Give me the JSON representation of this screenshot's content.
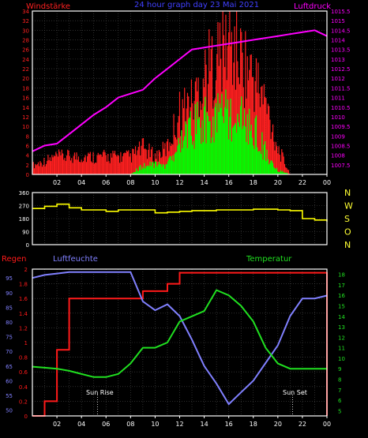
{
  "colors": {
    "background": "#000000",
    "frame": "#ffffff",
    "grid": "#4a4a4a",
    "wind_speed": "#ff2020",
    "wind_gust": "#ff1010",
    "wind_mean": "#00ff00",
    "pressure": "#ff00ff",
    "direction": "#ffff00",
    "rain": "#ff1a1a",
    "humidity": "#8080ff",
    "temperature": "#20e020",
    "title": "#4040ff",
    "direction_labels": "#ffff33"
  },
  "texts": {
    "wind_label": "Windstärke",
    "title": "24 hour graph day  23 Mai 2021",
    "pressure_label": "Luftdruck",
    "rain_label": "Regen",
    "humidity_label": "Luftfeuchte",
    "temperature_label": "Temperatur",
    "sunrise": "Sun Rise",
    "sunset": "Sun Set"
  },
  "chart_data": [
    {
      "type": "bar",
      "x_ticks": [
        "02",
        "04",
        "06",
        "08",
        "10",
        "12",
        "14",
        "16",
        "18",
        "20",
        "22",
        "00"
      ],
      "left_axis": {
        "ylim": [
          0,
          34
        ],
        "ticks": [
          "0",
          "2",
          "4",
          "6",
          "8",
          "10",
          "12",
          "14",
          "16",
          "18",
          "20",
          "22",
          "24",
          "26",
          "28",
          "30",
          "32",
          "34"
        ]
      },
      "right_axis": {
        "ylim": [
          1007,
          1015.5
        ],
        "ticks": [
          "1007.5",
          "1008",
          "1008.5",
          "1009",
          "1009.5",
          "1010",
          "1010.5",
          "1011",
          "1011.5",
          "1012",
          "1012.5",
          "1013",
          "1013.5",
          "1014",
          "1014.5",
          "1015",
          "1015.5"
        ]
      },
      "x": [
        0,
        1,
        2,
        3,
        4,
        5,
        6,
        7,
        8,
        9,
        10,
        11,
        12,
        13,
        14,
        15,
        16,
        17,
        18,
        19,
        20,
        21,
        22,
        23,
        24
      ],
      "series": [
        {
          "name": "Windstärke",
          "values": [
            2,
            3,
            4,
            4,
            4,
            4,
            4,
            4,
            4,
            6,
            4,
            6,
            14,
            16,
            22,
            26,
            30,
            26,
            22,
            16,
            6,
            0,
            0,
            0,
            0
          ]
        },
        {
          "values": [
            0,
            0,
            0,
            0,
            0,
            0,
            0,
            0,
            0,
            2,
            2,
            2,
            6,
            10,
            12,
            12,
            13,
            12,
            10,
            5,
            1,
            0,
            0,
            0,
            0
          ]
        },
        {
          "name": "Luftdruck",
          "values": [
            1008.2,
            1008.5,
            1008.6,
            1009.1,
            1009.6,
            1010.1,
            1010.5,
            1011.0,
            1011.2,
            1011.4,
            1012.0,
            1012.5,
            1013.0,
            1013.5,
            1013.6,
            1013.7,
            1013.8,
            1013.9,
            1014.0,
            1014.1,
            1014.2,
            1014.3,
            1014.4,
            1014.5,
            1014.2
          ]
        }
      ]
    },
    {
      "type": "line",
      "left_axis": {
        "ylim": [
          0,
          360
        ],
        "ticks": [
          "0",
          "90",
          "180",
          "270",
          "360"
        ]
      },
      "right_axis_labels": [
        "N",
        "W",
        "S",
        "O",
        "N"
      ],
      "x": [
        0,
        1,
        2,
        3,
        4,
        5,
        6,
        7,
        8,
        9,
        10,
        11,
        12,
        13,
        14,
        15,
        16,
        17,
        18,
        19,
        20,
        21,
        22,
        23,
        24
      ],
      "series": [
        {
          "values": [
            250,
            265,
            280,
            255,
            240,
            240,
            230,
            240,
            240,
            240,
            220,
            225,
            230,
            235,
            235,
            240,
            240,
            240,
            245,
            245,
            240,
            235,
            180,
            170,
            160
          ]
        }
      ]
    },
    {
      "type": "line",
      "x_ticks": [
        "02",
        "04",
        "06",
        "08",
        "10",
        "12",
        "14",
        "16",
        "18",
        "20",
        "22",
        "00"
      ],
      "rain_axis": {
        "ylim": [
          0,
          2
        ],
        "ticks": [
          "0",
          "0.2",
          "0.4",
          "0.6",
          "0.8",
          "1",
          "1.2",
          "1.4",
          "1.6",
          "1.8",
          "2"
        ]
      },
      "humidity_axis": {
        "ylim": [
          48,
          98
        ],
        "ticks": [
          "50",
          "55",
          "60",
          "65",
          "70",
          "75",
          "80",
          "85",
          "90",
          "95"
        ]
      },
      "temperature_axis": {
        "ylim": [
          4.5,
          18.5
        ],
        "ticks": [
          "5",
          "6",
          "7",
          "8",
          "9",
          "10",
          "11",
          "12",
          "13",
          "14",
          "15",
          "16",
          "17",
          "18"
        ]
      },
      "x": [
        0,
        1,
        2,
        3,
        4,
        5,
        6,
        7,
        8,
        9,
        10,
        11,
        12,
        13,
        14,
        15,
        16,
        17,
        18,
        19,
        20,
        21,
        22,
        23,
        24
      ],
      "series": [
        {
          "name": "Regen",
          "values": [
            0,
            0.2,
            0.9,
            1.6,
            1.6,
            1.6,
            1.6,
            1.6,
            1.6,
            1.7,
            1.7,
            1.8,
            1.95,
            1.95,
            1.95,
            1.95,
            1.95,
            1.95,
            1.95,
            1.95,
            1.95,
            1.95,
            1.95,
            1.95,
            0
          ]
        },
        {
          "name": "Luftfeuchte",
          "values": [
            95,
            96,
            96.5,
            97,
            97,
            97,
            97,
            97,
            97,
            87,
            84,
            86,
            82,
            74,
            65,
            59,
            52,
            56,
            60,
            66,
            72,
            82,
            88,
            88,
            89
          ]
        },
        {
          "name": "Temperatur",
          "values": [
            9.2,
            9.1,
            9.0,
            8.8,
            8.5,
            8.2,
            8.2,
            8.5,
            9.5,
            11.0,
            11.0,
            11.5,
            13.5,
            14.0,
            14.5,
            16.5,
            16.0,
            15.0,
            13.5,
            11.0,
            9.5,
            9.0,
            9.0,
            9.0,
            9.0
          ]
        }
      ],
      "annotations": [
        {
          "text": "Sun Rise",
          "x": 5.3
        },
        {
          "text": "Sun Set",
          "x": 21.2
        }
      ]
    }
  ]
}
